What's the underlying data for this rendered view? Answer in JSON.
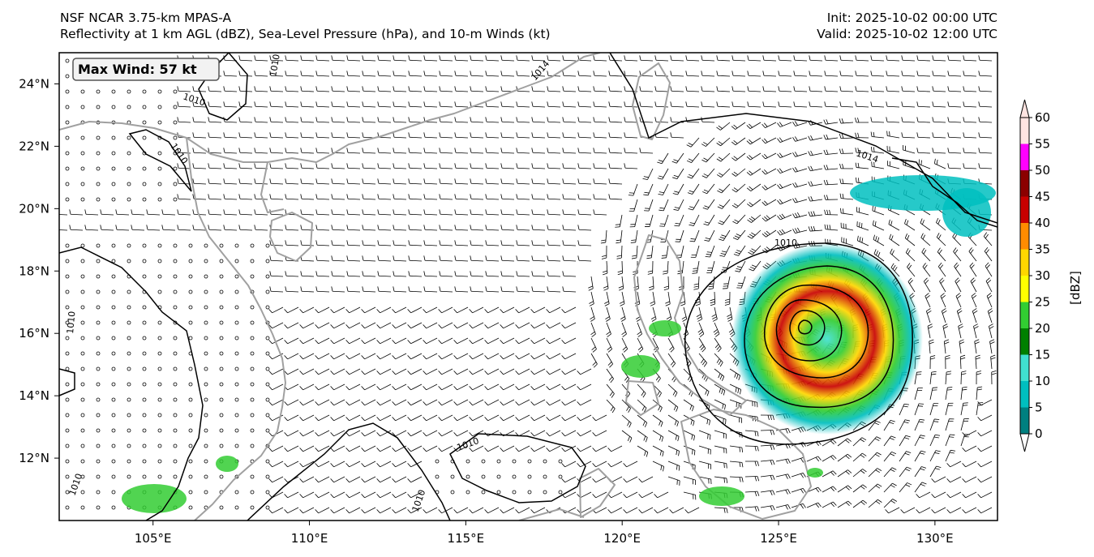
{
  "header": {
    "model_title": "NSF NCAR 3.75-km MPAS-A",
    "fields_title": "Reflectivity at 1 km AGL (dBZ), Sea-Level Pressure (hPa), and 10-m Winds (kt)",
    "init_time": "Init: 2025-10-02 00:00 UTC",
    "valid_time": "Valid: 2025-10-02 12:00 UTC"
  },
  "map": {
    "max_wind_label": "Max Wind: 57 kt",
    "lon_range": [
      102,
      132
    ],
    "lat_range": [
      10,
      25
    ],
    "lon_ticks": [
      {
        "value": 105,
        "label": "105°E"
      },
      {
        "value": 110,
        "label": "110°E"
      },
      {
        "value": 115,
        "label": "115°E"
      },
      {
        "value": 120,
        "label": "120°E"
      },
      {
        "value": 125,
        "label": "125°E"
      },
      {
        "value": 130,
        "label": "130°E"
      }
    ],
    "lat_ticks": [
      {
        "value": 12,
        "label": "12°N"
      },
      {
        "value": 14,
        "label": "14°N"
      },
      {
        "value": 16,
        "label": "16°N"
      },
      {
        "value": 18,
        "label": "18°N"
      },
      {
        "value": 20,
        "label": "20°N"
      },
      {
        "value": 22,
        "label": "22°N"
      },
      {
        "value": 24,
        "label": "24°N"
      }
    ],
    "isobar_labels": [
      "1010",
      "1014"
    ],
    "storm_center": {
      "lon": 125.6,
      "lat": 16.5
    },
    "colors": {
      "coastline": "#a0a0a0",
      "isobar": "#000000",
      "barb": "#000000"
    }
  },
  "colorbar": {
    "label": "[dBZ]",
    "ticks": [
      "0",
      "5",
      "10",
      "15",
      "20",
      "25",
      "30",
      "35",
      "40",
      "45",
      "50",
      "55",
      "60"
    ],
    "colors": [
      "#008080",
      "#00bfbf",
      "#40e0d0",
      "#008000",
      "#32cd32",
      "#ffff00",
      "#ffd700",
      "#ff8c00",
      "#c80000",
      "#8b0000",
      "#ff00ff",
      "#ffe4e1"
    ]
  }
}
